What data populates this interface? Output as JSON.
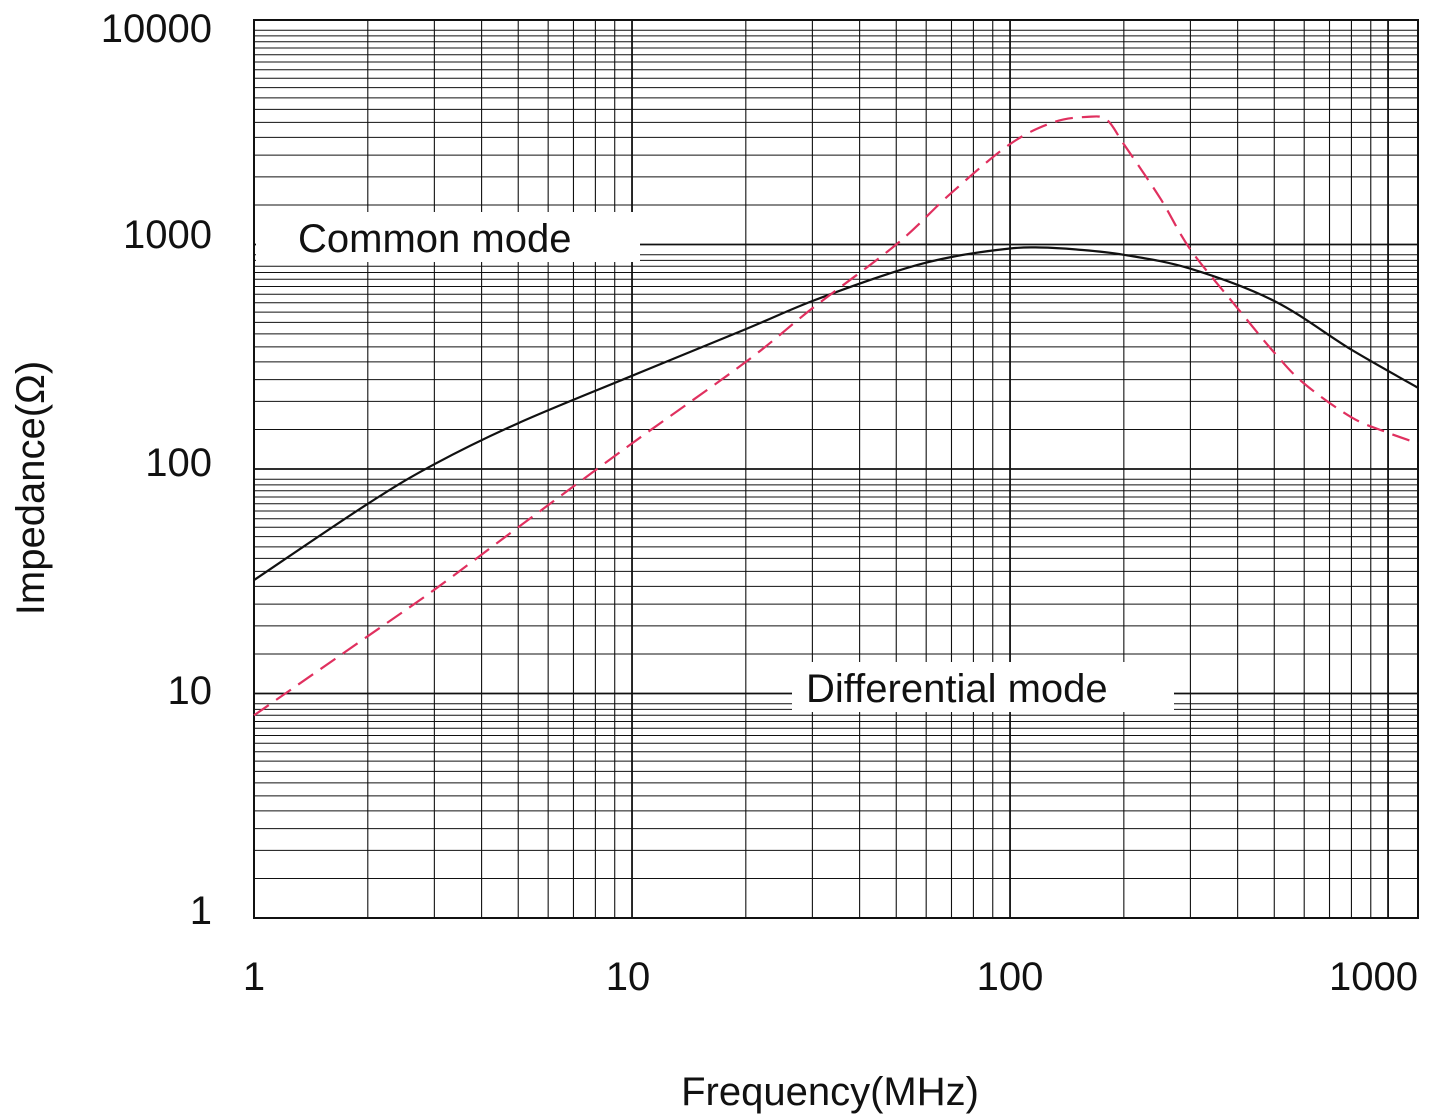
{
  "chart_data": {
    "type": "line",
    "title": "",
    "xlabel": "Frequency(MHz)",
    "ylabel": "Impedance(Ω)",
    "xscale": "log",
    "yscale": "log",
    "xlim": [
      1,
      1200
    ],
    "ylim": [
      1,
      10000
    ],
    "grid": true,
    "x_ticks": [
      "1",
      "10",
      "100",
      "1000"
    ],
    "y_ticks": [
      "1",
      "10",
      "100",
      "1000",
      "10000"
    ],
    "series": [
      {
        "name": "Common mode",
        "color": "#111111",
        "dash": "solid",
        "points": [
          [
            1,
            32
          ],
          [
            2,
            70
          ],
          [
            3,
            105
          ],
          [
            5,
            160
          ],
          [
            10,
            260
          ],
          [
            20,
            420
          ],
          [
            30,
            560
          ],
          [
            50,
            760
          ],
          [
            70,
            880
          ],
          [
            100,
            960
          ],
          [
            120,
            970
          ],
          [
            150,
            950
          ],
          [
            200,
            900
          ],
          [
            300,
            780
          ],
          [
            500,
            560
          ],
          [
            800,
            340
          ],
          [
            1200,
            230
          ]
        ]
      },
      {
        "name": "Differential mode",
        "color": "#e0305f",
        "dash": "dashed",
        "points": [
          [
            1,
            8
          ],
          [
            2,
            18
          ],
          [
            3,
            29
          ],
          [
            5,
            55
          ],
          [
            10,
            130
          ],
          [
            20,
            300
          ],
          [
            30,
            520
          ],
          [
            50,
            1000
          ],
          [
            70,
            1700
          ],
          [
            100,
            2800
          ],
          [
            130,
            3500
          ],
          [
            160,
            3700
          ],
          [
            180,
            3600
          ],
          [
            200,
            2800
          ],
          [
            250,
            1600
          ],
          [
            300,
            950
          ],
          [
            400,
            520
          ],
          [
            500,
            330
          ],
          [
            600,
            240
          ],
          [
            800,
            170
          ],
          [
            1000,
            145
          ],
          [
            1200,
            130
          ]
        ]
      }
    ],
    "annotations": [
      "Common mode",
      "Differential mode"
    ]
  }
}
